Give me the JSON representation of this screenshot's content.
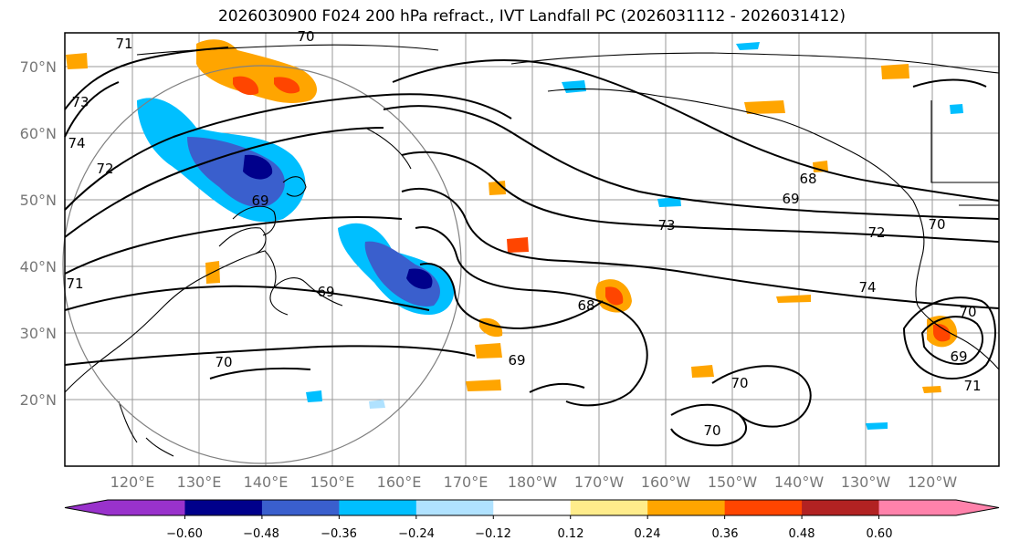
{
  "title": "2026030900 F024 200 hPa refract., IVT Landfall PC (2026031112 - 2026031412)",
  "lat_labels": [
    "70°N",
    "60°N",
    "50°N",
    "40°N",
    "30°N",
    "20°N"
  ],
  "lon_labels": [
    "120°E",
    "130°E",
    "140°E",
    "150°E",
    "160°E",
    "170°E",
    "180°W",
    "170°W",
    "160°W",
    "150°W",
    "140°W",
    "130°W",
    "120°W"
  ],
  "contour_labels": [
    "71",
    "70",
    "73",
    "74",
    "72",
    "71",
    "69",
    "69",
    "68",
    "69",
    "73",
    "72",
    "70",
    "74",
    "68",
    "70",
    "69",
    "69",
    "71",
    "70",
    "70",
    "70"
  ],
  "colorbar": {
    "ticks": [
      "−0.60",
      "−0.48",
      "−0.36",
      "−0.24",
      "−0.12",
      "0.12",
      "0.24",
      "0.36",
      "0.48",
      "0.60"
    ],
    "colors": [
      "#9932cc",
      "#00008b",
      "#3a5fcd",
      "#00bfff",
      "#b0e2ff",
      "#ffffff",
      "#ffec8b",
      "#ffa500",
      "#ff4500",
      "#b22222",
      "#ff82ab"
    ]
  },
  "colors": {
    "grid": "#999999",
    "coast": "#000000",
    "contour": "#000000",
    "circle": "#808080"
  }
}
